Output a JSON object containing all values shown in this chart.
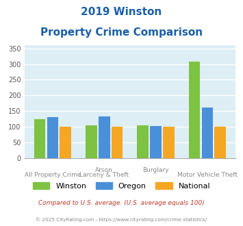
{
  "title_line1": "2019 Winston",
  "title_line2": "Property Crime Comparison",
  "cat_labels_top": [
    "",
    "Arson",
    "",
    "Burglary",
    ""
  ],
  "cat_labels_bottom": [
    "All Property Crime",
    "",
    "Larceny & Theft",
    "",
    "Motor Vehicle Theft"
  ],
  "winston": [
    125,
    0,
    105,
    104,
    307
  ],
  "oregon": [
    130,
    0,
    133,
    103,
    162
  ],
  "national": [
    100,
    0,
    100,
    100,
    100
  ],
  "winston_color": "#7dc242",
  "oregon_color": "#4a90d9",
  "national_color": "#f5a623",
  "bg_color": "#ddeef5",
  "ylim": [
    0,
    360
  ],
  "yticks": [
    0,
    50,
    100,
    150,
    200,
    250,
    300,
    350
  ],
  "ylabel_color": "#555555",
  "grid_color": "#ffffff",
  "title_color": "#1a5fa8",
  "legend_labels": [
    "Winston",
    "Oregon",
    "National"
  ],
  "footnote1": "Compared to U.S. average. (U.S. average equals 100)",
  "footnote2": "© 2025 CityRating.com - https://www.cityrating.com/crime-statistics/",
  "footnote1_color": "#c0392b",
  "footnote2_color": "#888888",
  "groups": [
    {
      "label_top": "",
      "label_bot": "All Property Crime",
      "winston": 125,
      "oregon": 130,
      "national": 100
    },
    {
      "label_top": "Arson",
      "label_bot": "Larceny & Theft",
      "winston": 105,
      "oregon": 133,
      "national": 100
    },
    {
      "label_top": "Burglary",
      "label_bot": "Motor Vehicle Theft",
      "winston": 104,
      "oregon": 103,
      "national": 100
    },
    {
      "label_top": "",
      "label_bot": "",
      "winston": 307,
      "oregon": 162,
      "national": 100
    }
  ]
}
